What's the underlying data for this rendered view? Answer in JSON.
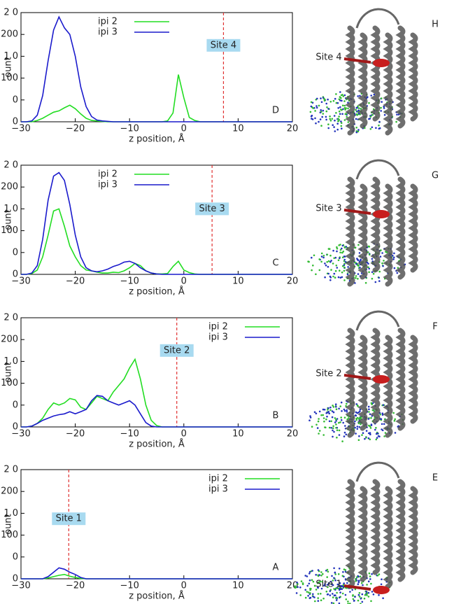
{
  "chart_data": [
    {
      "type": "line",
      "panel_label": "D",
      "site_label": "Site 4",
      "site_x": 7.3,
      "xlabel": "z position, Å",
      "ylabel": "ount",
      "legend": "upper center",
      "xlim": [
        -30,
        20
      ],
      "ylim": [
        0,
        250
      ],
      "xticks": [
        {
          "value": -30,
          "label": "−30"
        },
        {
          "value": -20,
          "label": "−20"
        },
        {
          "value": -10,
          "label": "−10"
        },
        0,
        10,
        20
      ],
      "yticks": [
        0,
        {
          "value": 50,
          "label": "0"
        },
        100,
        {
          "value": 150,
          "label": "1 0"
        },
        200,
        {
          "value": 250,
          "label": "2 0"
        }
      ],
      "x": [
        -30,
        -29,
        -28,
        -27,
        -26,
        -25,
        -24,
        -23,
        -22,
        -21,
        -20,
        -19,
        -18,
        -17,
        -16,
        -15,
        -14,
        -13,
        -12,
        -11,
        -10,
        -9,
        -8,
        -7,
        -6,
        -5,
        -4,
        -3,
        -2,
        -1,
        0,
        1,
        2,
        3,
        4,
        5,
        20
      ],
      "series": [
        {
          "name": "ipi 2",
          "color": "#22dd22",
          "values": [
            0,
            0,
            0,
            3,
            8,
            15,
            22,
            25,
            32,
            38,
            30,
            18,
            8,
            3,
            2,
            1,
            0,
            0,
            0,
            0,
            0,
            0,
            0,
            0,
            0,
            0,
            0,
            2,
            20,
            108,
            55,
            10,
            3,
            0,
            0,
            0,
            0
          ]
        },
        {
          "name": "ipi 3",
          "color": "#1a1acc",
          "values": [
            0,
            0,
            2,
            15,
            60,
            140,
            210,
            240,
            215,
            200,
            150,
            80,
            35,
            12,
            4,
            2,
            1,
            0,
            0,
            0,
            0,
            0,
            0,
            0,
            0,
            0,
            0,
            0,
            0,
            0,
            0,
            0,
            0,
            0,
            0,
            0,
            0
          ]
        }
      ]
    },
    {
      "type": "line",
      "panel_label": "C",
      "site_label": "Site 3",
      "site_x": 5.2,
      "xlabel": "z position, Å",
      "ylabel": "ount",
      "legend": "upper center",
      "xlim": [
        -30,
        20
      ],
      "ylim": [
        0,
        250
      ],
      "xticks": [
        {
          "value": -30,
          "label": "−30"
        },
        {
          "value": -20,
          "label": "−20"
        },
        {
          "value": -10,
          "label": "−10"
        },
        0,
        10,
        20
      ],
      "yticks": [
        0,
        {
          "value": 50,
          "label": "0"
        },
        100,
        {
          "value": 150,
          "label": "1 0"
        },
        200,
        {
          "value": 250,
          "label": "2 0"
        }
      ],
      "x": [
        -30,
        -29,
        -28,
        -27,
        -26,
        -25,
        -24,
        -23,
        -22,
        -21,
        -20,
        -19,
        -18,
        -17,
        -16,
        -15,
        -14,
        -13,
        -12,
        -11,
        -10,
        -9,
        -8,
        -7,
        -6,
        -5,
        -4,
        -3,
        -2,
        -1,
        0,
        1,
        2,
        3,
        4,
        5,
        20
      ],
      "series": [
        {
          "name": "ipi 2",
          "color": "#22dd22",
          "values": [
            0,
            0,
            2,
            10,
            40,
            90,
            145,
            150,
            110,
            65,
            40,
            20,
            10,
            8,
            5,
            3,
            3,
            5,
            4,
            8,
            15,
            25,
            20,
            8,
            3,
            1,
            1,
            2,
            18,
            30,
            10,
            4,
            1,
            0,
            0,
            0,
            0
          ]
        },
        {
          "name": "ipi 3",
          "color": "#1a1acc",
          "values": [
            0,
            0,
            3,
            20,
            80,
            170,
            225,
            233,
            215,
            160,
            90,
            40,
            15,
            8,
            6,
            8,
            12,
            18,
            22,
            28,
            30,
            25,
            15,
            8,
            3,
            1,
            0,
            0,
            0,
            0,
            0,
            0,
            0,
            0,
            0,
            0,
            0
          ]
        }
      ]
    },
    {
      "type": "line",
      "panel_label": "B",
      "site_label": "Site 2",
      "site_x": -1.3,
      "xlabel": "z position, Å",
      "ylabel": "ount",
      "legend": "upper right",
      "xlim": [
        -30,
        20
      ],
      "ylim": [
        0,
        250
      ],
      "xticks": [
        {
          "value": -30,
          "label": "−30"
        },
        {
          "value": -20,
          "label": "−20"
        },
        {
          "value": -10,
          "label": "−10"
        },
        0,
        10,
        20
      ],
      "yticks": [
        0,
        {
          "value": 50,
          "label": "0"
        },
        100,
        {
          "value": 150,
          "label": "1 0"
        },
        200,
        {
          "value": 250,
          "label": "2 0"
        }
      ],
      "x": [
        -30,
        -29,
        -28,
        -27,
        -26,
        -25,
        -24,
        -23,
        -22,
        -21,
        -20,
        -19,
        -18,
        -17,
        -16,
        -15,
        -14,
        -13,
        -12,
        -11,
        -10,
        -9,
        -8,
        -7,
        -6,
        -5,
        -4,
        -3,
        -2,
        -1,
        0,
        1,
        2,
        3,
        4,
        5,
        20
      ],
      "series": [
        {
          "name": "ipi 2",
          "color": "#22dd22",
          "values": [
            0,
            0,
            2,
            8,
            20,
            40,
            55,
            50,
            55,
            65,
            62,
            45,
            40,
            55,
            70,
            65,
            60,
            80,
            95,
            110,
            135,
            155,
            110,
            50,
            15,
            3,
            0,
            0,
            0,
            0,
            0,
            0,
            0,
            0,
            0,
            0,
            0
          ]
        },
        {
          "name": "ipi 3",
          "color": "#1a1acc",
          "values": [
            0,
            0,
            2,
            8,
            15,
            20,
            25,
            28,
            30,
            35,
            30,
            35,
            40,
            60,
            72,
            70,
            60,
            55,
            50,
            55,
            60,
            50,
            30,
            10,
            2,
            0,
            0,
            0,
            0,
            0,
            0,
            0,
            0,
            0,
            0,
            0,
            0
          ]
        }
      ]
    },
    {
      "type": "line",
      "panel_label": "A",
      "site_label": "Site 1",
      "site_x": -21.2,
      "xlabel": "z position, Å",
      "ylabel": "ount",
      "legend": "upper right",
      "xlim": [
        -30,
        20
      ],
      "ylim": [
        0,
        250
      ],
      "xticks": [
        {
          "value": -30,
          "label": "−30"
        },
        {
          "value": -20,
          "label": "−20"
        },
        {
          "value": -10,
          "label": "−10"
        },
        0,
        10,
        20
      ],
      "yticks": [
        0,
        {
          "value": 50,
          "label": "0"
        },
        100,
        {
          "value": 150,
          "label": "1 0"
        },
        200,
        {
          "value": 250,
          "label": "2 0"
        }
      ],
      "x": [
        -30,
        -29,
        -28,
        -27,
        -26,
        -25,
        -24,
        -23,
        -22,
        -21,
        -20,
        -19,
        -18,
        -17,
        -16,
        -15,
        -14,
        -13,
        -12,
        -11,
        -10,
        -9,
        -8,
        -7,
        -6,
        -5,
        -4,
        -3,
        -2,
        -1,
        0,
        1,
        2,
        3,
        4,
        5,
        20
      ],
      "series": [
        {
          "name": "ipi 2",
          "color": "#22dd22",
          "values": [
            0,
            0,
            0,
            0,
            0,
            2,
            5,
            8,
            10,
            6,
            3,
            1,
            0,
            0,
            0,
            0,
            0,
            0,
            0,
            0,
            0,
            0,
            0,
            0,
            0,
            0,
            0,
            0,
            0,
            0,
            0,
            0,
            0,
            0,
            0,
            0,
            0
          ]
        },
        {
          "name": "ipi 3",
          "color": "#1a1acc",
          "values": [
            0,
            0,
            0,
            0,
            0,
            5,
            15,
            25,
            22,
            15,
            10,
            3,
            0,
            0,
            0,
            0,
            0,
            0,
            0,
            0,
            0,
            0,
            0,
            0,
            0,
            0,
            0,
            0,
            0,
            0,
            0,
            0,
            0,
            0,
            0,
            0,
            0
          ]
        }
      ]
    }
  ],
  "structures": [
    {
      "panel_label": "H",
      "site_label": "Site 4"
    },
    {
      "panel_label": "G",
      "site_label": "Site 3"
    },
    {
      "panel_label": "F",
      "site_label": "Site 2"
    },
    {
      "panel_label": "E",
      "site_label": "Site 1"
    }
  ]
}
